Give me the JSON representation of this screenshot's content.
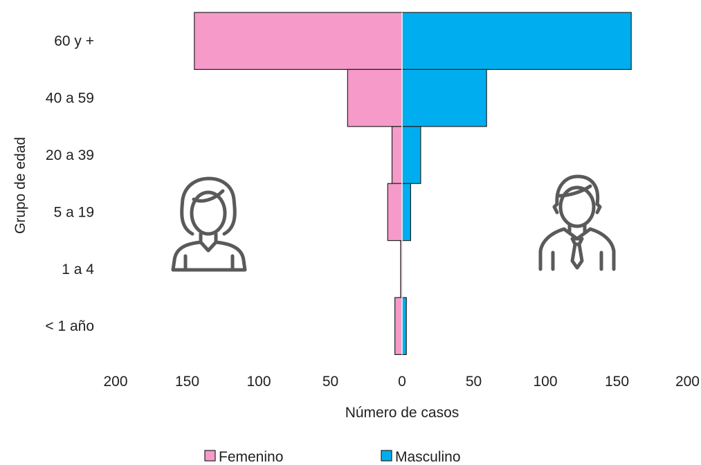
{
  "chart_data": {
    "type": "bar",
    "orientation": "horizontal",
    "subtype": "population-pyramid",
    "categories": [
      "60 y +",
      "40 a 59",
      "20 a 39",
      "5 a 19",
      "1 a 4",
      "< 1 año"
    ],
    "series": [
      {
        "name": "Femenino",
        "values": [
          145,
          38,
          7,
          10,
          1,
          5
        ],
        "color": "#f59ac9"
      },
      {
        "name": "Masculino",
        "values": [
          160,
          59,
          13,
          6,
          0,
          3
        ],
        "color": "#00aeef"
      }
    ],
    "xlabel": "Número de casos",
    "ylabel": "Grupo de edad",
    "xlim": [
      -200,
      200
    ],
    "x_ticks": [
      {
        "value": -200,
        "label": "200"
      },
      {
        "value": -150,
        "label": "150"
      },
      {
        "value": -100,
        "label": "100"
      },
      {
        "value": -50,
        "label": "50"
      },
      {
        "value": 0,
        "label": "0"
      },
      {
        "value": 50,
        "label": "50"
      },
      {
        "value": 100,
        "label": "100"
      },
      {
        "value": 150,
        "label": "150"
      },
      {
        "value": 200,
        "label": "200"
      }
    ],
    "grid": false,
    "legend_position": "bottom",
    "icons": [
      "female-person-icon",
      "male-person-icon"
    ]
  }
}
